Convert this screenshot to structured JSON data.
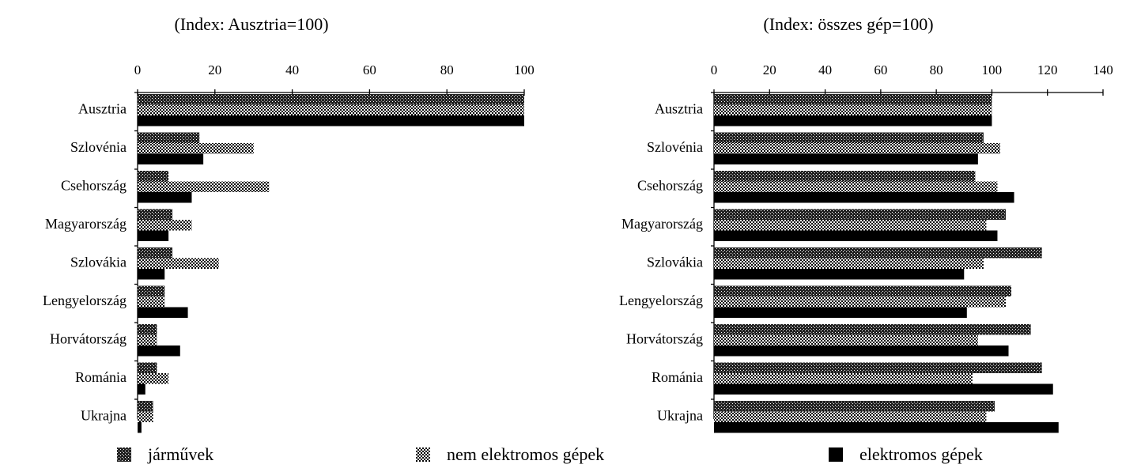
{
  "chart_data": [
    {
      "type": "bar",
      "orientation": "horizontal",
      "subtitle": "(Index: Ausztria=100)",
      "categories": [
        "Ausztria",
        "Szlovénia",
        "Csehország",
        "Magyarország",
        "Szlovákia",
        "Lengyelország",
        "Horvátország",
        "Románia",
        "Ukrajna"
      ],
      "xlim": [
        0,
        100
      ],
      "xticks": [
        0,
        20,
        40,
        60,
        80,
        100
      ],
      "series": [
        {
          "name": "járművek",
          "color": "#222222",
          "values": [
            100,
            16,
            8,
            9,
            9,
            7,
            5,
            5,
            4
          ]
        },
        {
          "name": "nem elektromos gépek",
          "color": "#000000",
          "values": [
            100,
            30,
            34,
            14,
            21,
            7,
            5,
            8,
            4
          ]
        },
        {
          "name": "elektromos gépek",
          "color": "#000000",
          "values": [
            100,
            17,
            14,
            8,
            7,
            13,
            11,
            2,
            1
          ]
        }
      ]
    },
    {
      "type": "bar",
      "orientation": "horizontal",
      "subtitle": "(Index: összes gép=100)",
      "categories": [
        "Ausztria",
        "Szlovénia",
        "Csehország",
        "Magyarország",
        "Szlovákia",
        "Lengyelország",
        "Horvátország",
        "Románia",
        "Ukrajna"
      ],
      "xlim": [
        0,
        140
      ],
      "xticks": [
        0,
        20,
        40,
        60,
        80,
        100,
        120,
        140
      ],
      "series": [
        {
          "color": "#222222",
          "values": [
            100,
            97,
            94,
            105,
            118,
            107,
            114,
            118,
            101
          ]
        },
        {
          "color": "#000000",
          "values": [
            100,
            103,
            102,
            98,
            97,
            105,
            95,
            93,
            98
          ]
        },
        {
          "color": "#000000",
          "values": [
            100,
            95,
            108,
            102,
            90,
            91,
            106,
            122,
            124
          ]
        }
      ]
    }
  ]
}
